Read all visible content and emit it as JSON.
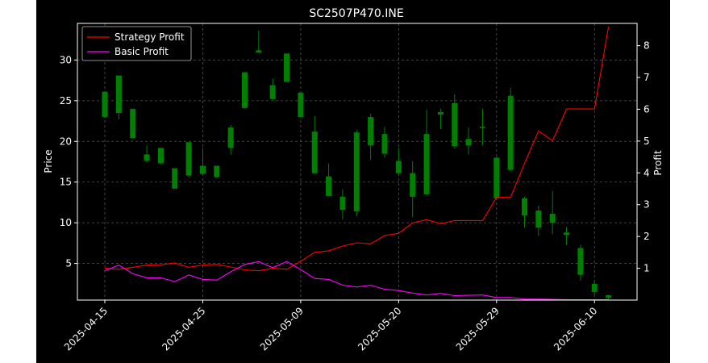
{
  "chart_data": {
    "type": "candlestick",
    "title": "SC2507P470.INE",
    "ylabel_left": "Price",
    "ylabel_right": "Profit",
    "xlabel": "",
    "ylim_left": [
      0.5,
      34.5
    ],
    "ylim_right": [
      0.0,
      8.7
    ],
    "y_ticks_left": [
      5,
      10,
      15,
      20,
      25,
      30
    ],
    "y_ticks_right": [
      1,
      2,
      3,
      4,
      5,
      6,
      7,
      8
    ],
    "x_ticks": [
      {
        "index": 0,
        "label": "2025-04-15"
      },
      {
        "index": 7,
        "label": "2025-04-25"
      },
      {
        "index": 14,
        "label": "2025-05-09"
      },
      {
        "index": 21,
        "label": "2025-05-20"
      },
      {
        "index": 28,
        "label": "2025-05-29"
      },
      {
        "index": 35,
        "label": "2025-06-10"
      }
    ],
    "grid": true,
    "legend_position": "top-left",
    "legend": [
      "Strategy Profit",
      "Basic Profit"
    ],
    "colors": {
      "up": "#008000",
      "down": "#ff0000",
      "strategy": "#ff0000",
      "basic": "#ff00ff",
      "background": "#000000",
      "axis": "#ffffff",
      "grid": "#555555"
    },
    "candles": [
      {
        "o": 23.0,
        "h": 26.1,
        "l": 22.9,
        "c": 26.1
      },
      {
        "o": 23.5,
        "h": 28.1,
        "l": 22.7,
        "c": 28.1
      },
      {
        "o": 20.4,
        "h": 24.0,
        "l": 20.4,
        "c": 24.0
      },
      {
        "o": 17.6,
        "h": 19.5,
        "l": 17.4,
        "c": 18.4
      },
      {
        "o": 17.3,
        "h": 19.2,
        "l": 17.2,
        "c": 19.2
      },
      {
        "o": 14.2,
        "h": 16.7,
        "l": 14.2,
        "c": 16.7
      },
      {
        "o": 15.8,
        "h": 19.9,
        "l": 15.6,
        "c": 19.9
      },
      {
        "o": 16.0,
        "h": 19.2,
        "l": 15.9,
        "c": 17.0
      },
      {
        "o": 15.6,
        "h": 17.0,
        "l": 15.5,
        "c": 17.0
      },
      {
        "o": 19.2,
        "h": 22.0,
        "l": 18.4,
        "c": 21.7
      },
      {
        "o": 24.1,
        "h": 28.5,
        "l": 24.0,
        "c": 28.5
      },
      {
        "o": 30.9,
        "h": 33.6,
        "l": 30.9,
        "c": 31.2
      },
      {
        "o": 25.2,
        "h": 27.7,
        "l": 25.1,
        "c": 26.9
      },
      {
        "o": 27.3,
        "h": 30.8,
        "l": 27.3,
        "c": 30.8
      },
      {
        "o": 23.0,
        "h": 26.0,
        "l": 23.0,
        "c": 26.0
      },
      {
        "o": 16.1,
        "h": 23.1,
        "l": 16.0,
        "c": 21.2
      },
      {
        "o": 13.3,
        "h": 17.3,
        "l": 13.3,
        "c": 15.7
      },
      {
        "o": 11.6,
        "h": 14.1,
        "l": 10.4,
        "c": 13.2
      },
      {
        "o": 11.4,
        "h": 21.4,
        "l": 10.8,
        "c": 21.1
      },
      {
        "o": 19.5,
        "h": 23.4,
        "l": 17.7,
        "c": 23.0
      },
      {
        "o": 18.5,
        "h": 21.8,
        "l": 18.0,
        "c": 20.9
      },
      {
        "o": 16.1,
        "h": 19.2,
        "l": 15.9,
        "c": 17.6
      },
      {
        "o": 13.2,
        "h": 17.6,
        "l": 10.7,
        "c": 16.1
      },
      {
        "o": 13.5,
        "h": 23.9,
        "l": 13.4,
        "c": 20.9
      },
      {
        "o": 23.3,
        "h": 24.0,
        "l": 21.5,
        "c": 23.6
      },
      {
        "o": 19.4,
        "h": 25.8,
        "l": 19.1,
        "c": 24.7
      },
      {
        "o": 19.5,
        "h": 21.7,
        "l": 18.4,
        "c": 20.3
      },
      {
        "o": 21.8,
        "h": 24.0,
        "l": 19.5,
        "c": 21.8
      },
      {
        "o": 13.0,
        "h": 18.1,
        "l": 12.8,
        "c": 18.0
      },
      {
        "o": 16.5,
        "h": 26.6,
        "l": 16.3,
        "c": 25.6
      },
      {
        "o": 10.9,
        "h": 13.2,
        "l": 9.4,
        "c": 13.0
      },
      {
        "o": 9.4,
        "h": 12.1,
        "l": 8.4,
        "c": 11.5
      },
      {
        "o": 10.0,
        "h": 13.9,
        "l": 8.6,
        "c": 11.1
      },
      {
        "o": 8.5,
        "h": 9.5,
        "l": 7.3,
        "c": 8.8
      },
      {
        "o": 3.6,
        "h": 7.3,
        "l": 2.9,
        "c": 6.9
      },
      {
        "o": 1.5,
        "h": 2.9,
        "l": 1.2,
        "c": 2.5
      },
      {
        "o": 0.8,
        "h": 1.1,
        "l": 0.6,
        "c": 1.1
      }
    ],
    "series": [
      {
        "name": "Strategy Profit",
        "values": [
          1.0,
          0.97,
          1.03,
          1.1,
          1.11,
          1.17,
          1.03,
          1.1,
          1.12,
          1.04,
          0.95,
          0.92,
          1.0,
          0.97,
          1.22,
          1.5,
          1.55,
          1.7,
          1.8,
          1.77,
          2.03,
          2.1,
          2.43,
          2.53,
          2.4,
          2.5,
          2.5,
          2.5,
          3.23,
          3.23,
          4.3,
          5.32,
          5.01,
          6.01,
          6.01,
          6.01,
          8.6
        ]
      },
      {
        "name": "Basic Profit",
        "values": [
          0.92,
          1.1,
          0.83,
          0.7,
          0.7,
          0.58,
          0.79,
          0.65,
          0.63,
          0.89,
          1.12,
          1.21,
          1.02,
          1.21,
          0.96,
          0.68,
          0.65,
          0.47,
          0.41,
          0.47,
          0.34,
          0.3,
          0.22,
          0.16,
          0.21,
          0.14,
          0.15,
          0.16,
          0.08,
          0.08,
          0.03,
          0.03,
          0.02,
          0.01,
          0.01,
          0.01,
          0.01
        ]
      }
    ]
  }
}
